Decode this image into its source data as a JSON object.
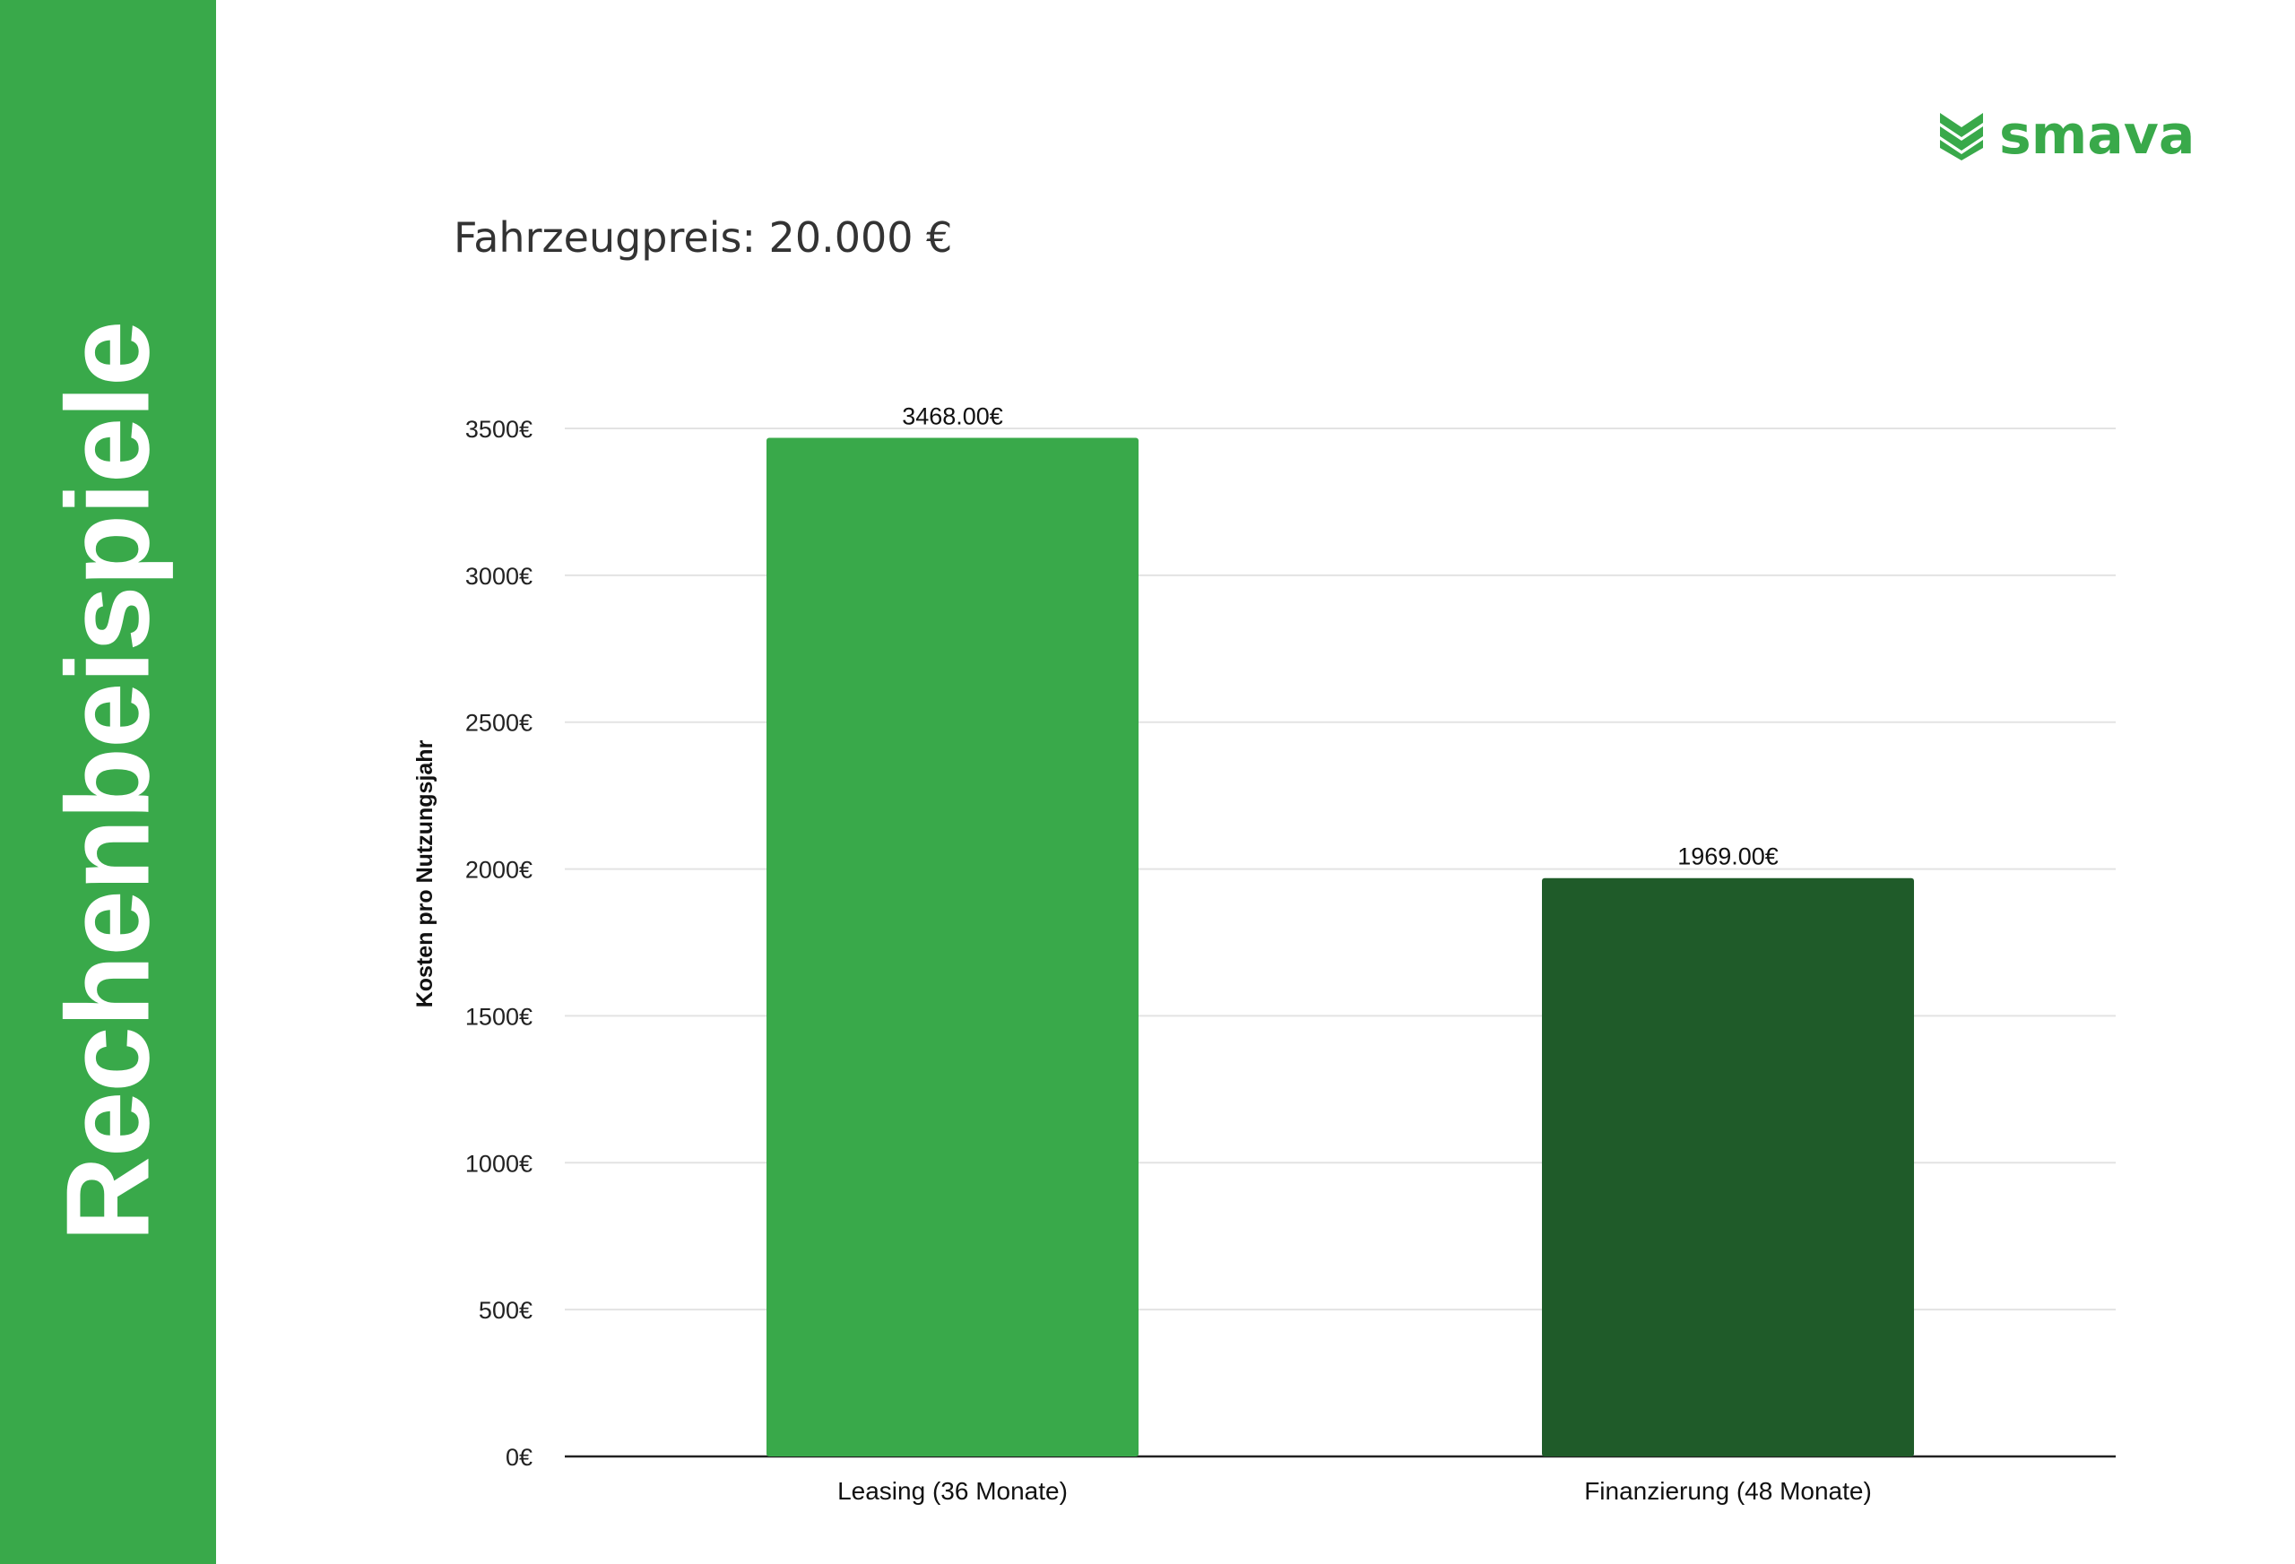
{
  "sidebar": {
    "title": "Rechenbeispiele",
    "color": "#39a94a"
  },
  "logo": {
    "text": "smava",
    "color": "#39a94a",
    "icon": "chevron-stack-icon"
  },
  "header": {
    "price_title": "Fahrzeugpreis: 20.000 €"
  },
  "chart_data": {
    "type": "bar",
    "categories": [
      "Leasing (36 Monate)",
      "Finanzierung (48 Monate)"
    ],
    "values": [
      3468,
      1969
    ],
    "data_labels": [
      "3468.00€",
      "1969.00€"
    ],
    "colors": [
      "#39a94a",
      "#1f5b29"
    ],
    "title": "",
    "xlabel": "",
    "ylabel": "Kosten pro Nutzungsjahr",
    "ylim": [
      0,
      3500
    ],
    "yticks": [
      0,
      500,
      1000,
      1500,
      2000,
      2500,
      3000,
      3500
    ],
    "ytick_labels": [
      "0€",
      "500€",
      "1000€",
      "1500€",
      "2000€",
      "2500€",
      "3000€",
      "3500€"
    ],
    "grid": true,
    "legend": "none"
  }
}
